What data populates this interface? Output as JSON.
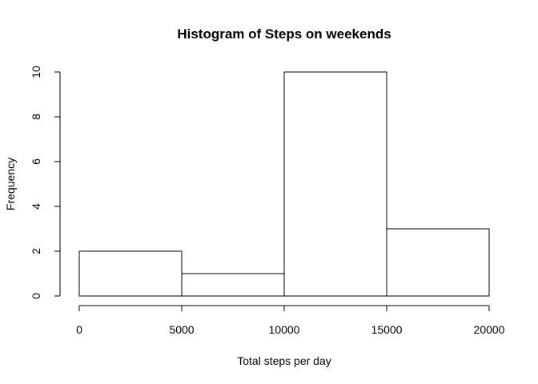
{
  "chart_data": {
    "type": "bar",
    "title": "Histogram of Steps on weekends",
    "xlabel": "Total steps per day",
    "ylabel": "Frequency",
    "bins": [
      {
        "start": 0,
        "end": 5000,
        "count": 2
      },
      {
        "start": 5000,
        "end": 10000,
        "count": 1
      },
      {
        "start": 10000,
        "end": 15000,
        "count": 10
      },
      {
        "start": 15000,
        "end": 20000,
        "count": 3
      }
    ],
    "xlim": [
      0,
      20000
    ],
    "ylim": [
      0,
      10
    ],
    "x_ticks": [
      "0",
      "5000",
      "10000",
      "15000",
      "20000"
    ],
    "y_ticks": [
      "0",
      "2",
      "4",
      "6",
      "8",
      "10"
    ],
    "bar_fill": "#ffffff",
    "bar_stroke": "#000000",
    "grid": false
  }
}
